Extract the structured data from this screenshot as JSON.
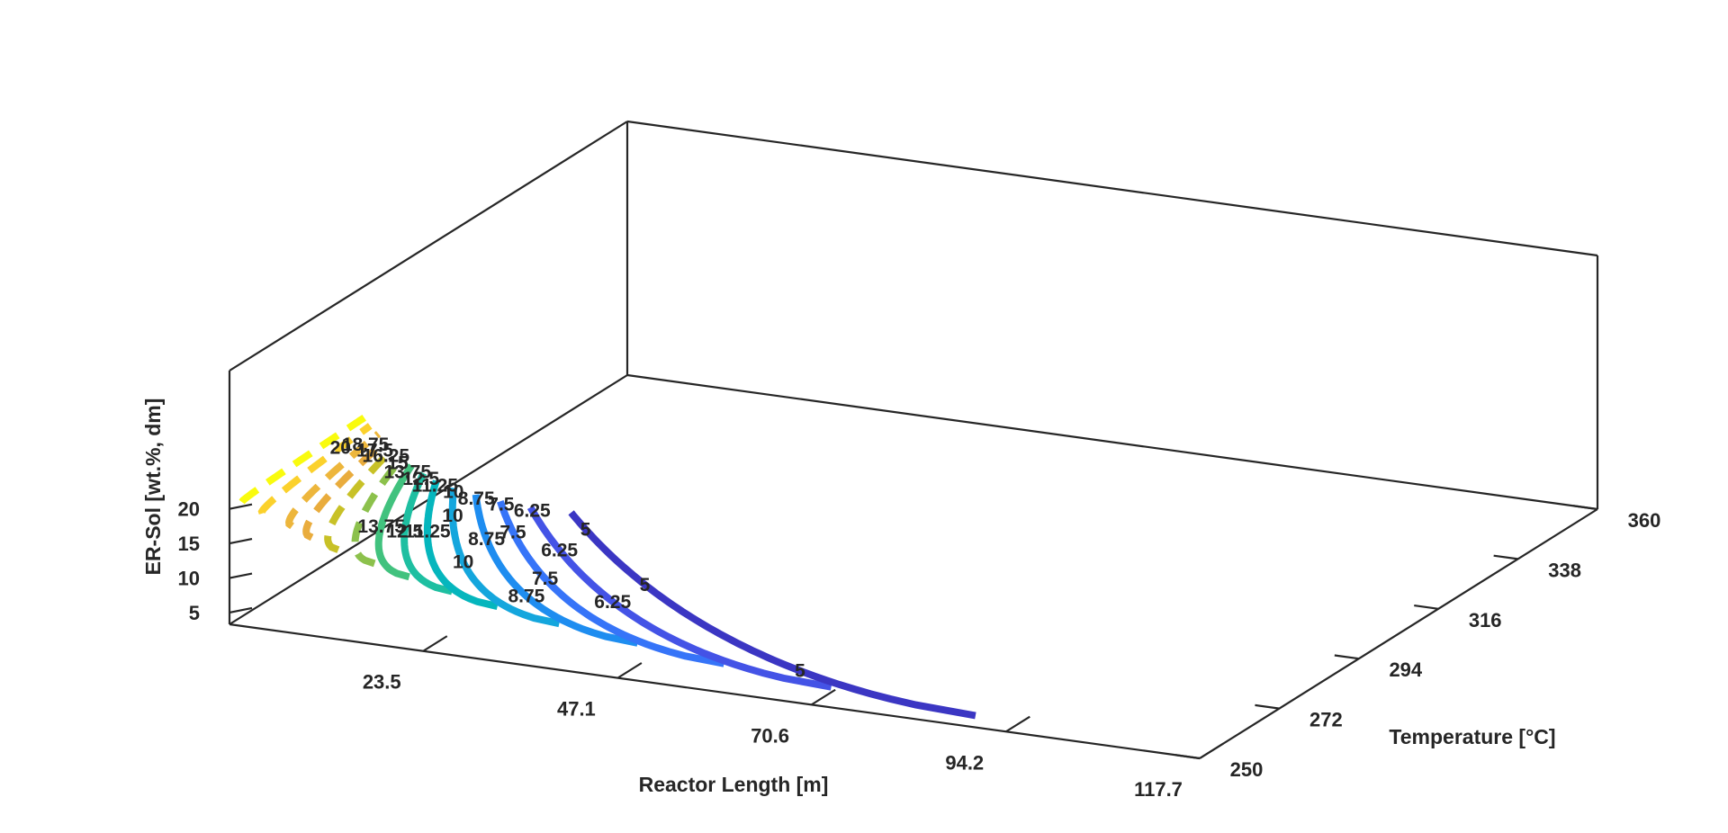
{
  "chart_data": {
    "type": "contour3",
    "title": "",
    "xlabel": "Reactor Length [m]",
    "ylabel": "Temperature [°C]",
    "zlabel": "ER-Sol [wt.%, dm]",
    "x_ticks": [
      "23.5",
      "47.1",
      "70.6",
      "94.2",
      "117.7"
    ],
    "x_tick_values": [
      23.5,
      47.1,
      70.6,
      94.2,
      117.7
    ],
    "xlim": [
      0,
      117.7
    ],
    "y_ticks": [
      "250",
      "272",
      "294",
      "316",
      "338",
      "360"
    ],
    "y_tick_values": [
      250,
      272,
      294,
      316,
      338,
      360
    ],
    "ylim": [
      250,
      360
    ],
    "z_ticks": [
      "5",
      "10",
      "15",
      "20"
    ],
    "z_tick_values": [
      5,
      10,
      15,
      20
    ],
    "zlim": [
      3.3,
      40
    ],
    "grid": false,
    "colormap": "parula",
    "levels": [
      {
        "value": 21.25,
        "color": "#f9fb0e",
        "L": 1.5,
        "labels": []
      },
      {
        "value": 20,
        "color": "#fbd12c",
        "L": 4.0,
        "labels": [
          {
            "text": "20",
            "t": 0.25
          }
        ]
      },
      {
        "value": 18.75,
        "color": "#edb63c",
        "L": 7.6,
        "labels": [
          {
            "text": "18.75",
            "t": 0.12
          }
        ]
      },
      {
        "value": 17.5,
        "color": "#e9ac3d",
        "L": 10.0,
        "labels": [
          {
            "text": "17.5",
            "t": 0.09
          }
        ]
      },
      {
        "value": 16.25,
        "color": "#c8c127",
        "L": 13.2,
        "labels": [
          {
            "text": "16.25",
            "t": 0.06
          }
        ]
      },
      {
        "value": 15,
        "color": "#8cc14c",
        "L": 17.6,
        "labels": [
          {
            "text": "15",
            "t": 0.05
          }
        ]
      },
      {
        "value": 13.75,
        "color": "#41c27e",
        "L": 21.8,
        "labels": [
          {
            "text": "13.75",
            "t": 0.58
          },
          {
            "text": "13.75",
            "t": 0.06
          }
        ]
      },
      {
        "value": 12.5,
        "color": "#1ebfa1",
        "L": 27.0,
        "labels": [
          {
            "text": "12.5",
            "t": 0.53
          },
          {
            "text": "12.5",
            "t": 0.05
          }
        ]
      },
      {
        "value": 11.25,
        "color": "#05b6bd",
        "L": 32.5,
        "labels": [
          {
            "text": "11.25",
            "t": 0.44
          },
          {
            "text": "11.25",
            "t": 0.04
          }
        ]
      },
      {
        "value": 10,
        "color": "#14a6dd",
        "L": 40.0,
        "labels": [
          {
            "text": "10",
            "t": 0.6
          },
          {
            "text": "10",
            "t": 0.23
          },
          {
            "text": "10",
            "t": 0.03
          }
        ]
      },
      {
        "value": 8.75,
        "color": "#1e8df0",
        "L": 49.5,
        "labels": [
          {
            "text": "8.75",
            "t": 0.75
          },
          {
            "text": "8.75",
            "t": 0.34
          },
          {
            "text": "8.75",
            "t": 0.03
          }
        ]
      },
      {
        "value": 7.5,
        "color": "#3674f8",
        "L": 60.0,
        "labels": [
          {
            "text": "7.5",
            "t": 0.54
          },
          {
            "text": "7.5",
            "t": 0.22
          },
          {
            "text": "7.5",
            "t": 0.02
          }
        ]
      },
      {
        "value": 6.25,
        "color": "#4453e6",
        "L": 73.0,
        "labels": [
          {
            "text": "6.25",
            "t": 0.6
          },
          {
            "text": "6.25",
            "t": 0.28
          },
          {
            "text": "6.25",
            "t": 0.02
          }
        ]
      },
      {
        "value": 5,
        "color": "#3b36c3",
        "L": 90.5,
        "labels": [
          {
            "text": "5",
            "t": 0.86
          },
          {
            "text": "5",
            "t": 0.42
          },
          {
            "text": "5",
            "t": 0.1
          }
        ]
      }
    ]
  }
}
